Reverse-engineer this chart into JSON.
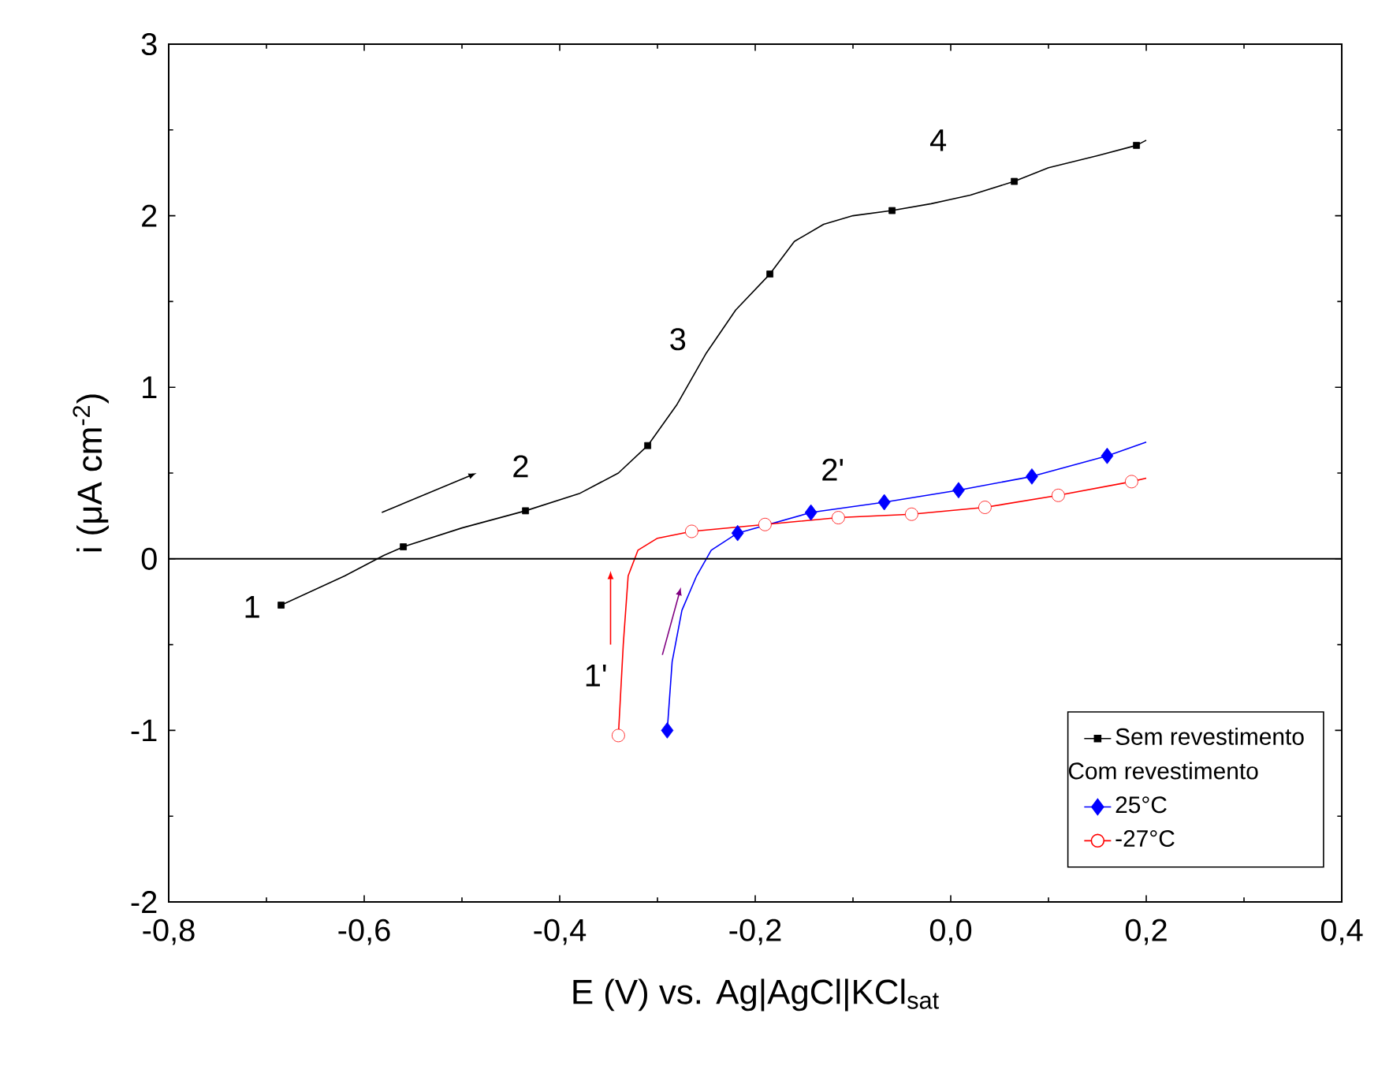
{
  "chart_data": {
    "type": "line",
    "xlabel": "E (V) vs. Ag|AgCl|KCl$_{sat}$",
    "ylabel": "i (μA cm$^{-2}$)",
    "legend_title": "Com revestimento",
    "xlim": [
      -0.8,
      0.4
    ],
    "ylim": [
      -2,
      3
    ],
    "xticks": [
      {
        "value": -0.8,
        "label": "-0,8"
      },
      {
        "value": -0.6,
        "label": "-0,6"
      },
      {
        "value": -0.4,
        "label": "-0,4"
      },
      {
        "value": -0.2,
        "label": "-0,2"
      },
      {
        "value": 0.0,
        "label": "0,0"
      },
      {
        "value": 0.2,
        "label": "0,2"
      },
      {
        "value": 0.4,
        "label": "0,4"
      }
    ],
    "yticks": [
      -2,
      -1,
      0,
      1,
      2,
      3
    ],
    "grid": false,
    "legend": "bottom right",
    "ref_lines": [
      {
        "axis": "y",
        "value": 0,
        "color": "#000000"
      }
    ],
    "annotations": [
      "1",
      "2",
      "3",
      "4",
      "1'",
      "2'"
    ],
    "series": [
      {
        "color": "#000000",
        "marker": "none",
        "x": [
          -0.685,
          -0.62,
          -0.58,
          -0.56,
          -0.5,
          -0.435,
          -0.38,
          -0.34,
          -0.31,
          -0.28,
          -0.25,
          -0.22,
          -0.185,
          -0.16,
          -0.13,
          -0.1,
          -0.06,
          -0.02,
          0.02,
          0.065,
          0.1,
          0.15,
          0.19,
          0.2
        ],
        "values": [
          -0.27,
          -0.1,
          0.02,
          0.07,
          0.18,
          0.28,
          0.38,
          0.5,
          0.66,
          0.9,
          1.2,
          1.45,
          1.66,
          1.85,
          1.95,
          2.0,
          2.03,
          2.07,
          2.12,
          2.2,
          2.28,
          2.35,
          2.41,
          2.44
        ]
      },
      {
        "type": "scatter",
        "name": "Sem revestimento",
        "color": "#000000",
        "marker": "square",
        "x": [
          -0.685,
          -0.56,
          -0.435,
          -0.31,
          -0.185,
          -0.06,
          0.065,
          0.19
        ],
        "values": [
          -0.27,
          0.07,
          0.28,
          0.66,
          1.66,
          2.03,
          2.2,
          2.41
        ]
      },
      {
        "color": "#0000ff",
        "marker": "none",
        "x": [
          -0.29,
          -0.285,
          -0.275,
          -0.26,
          -0.245,
          -0.218,
          -0.143,
          -0.068,
          0.008,
          0.083,
          0.16,
          0.2
        ],
        "values": [
          -1.0,
          -0.6,
          -0.3,
          -0.1,
          0.05,
          0.15,
          0.27,
          0.33,
          0.4,
          0.48,
          0.6,
          0.68
        ]
      },
      {
        "type": "scatter",
        "name": "25°C",
        "color": "#0000ff",
        "marker": "diamond",
        "x": [
          -0.29,
          -0.218,
          -0.143,
          -0.068,
          0.008,
          0.083,
          0.16
        ],
        "values": [
          -1.0,
          0.15,
          0.27,
          0.33,
          0.4,
          0.48,
          0.6
        ]
      },
      {
        "color": "#ff0000",
        "marker": "none",
        "x": [
          -0.34,
          -0.335,
          -0.33,
          -0.32,
          -0.3,
          -0.265,
          -0.19,
          -0.115,
          -0.04,
          0.035,
          0.11,
          0.185,
          0.2
        ],
        "values": [
          -1.03,
          -0.5,
          -0.1,
          0.05,
          0.12,
          0.16,
          0.2,
          0.24,
          0.26,
          0.3,
          0.37,
          0.45,
          0.47
        ]
      },
      {
        "type": "scatter",
        "name": "-27°C",
        "color": "#ff0000",
        "marker": "circle",
        "x": [
          -0.34,
          -0.265,
          -0.19,
          -0.115,
          -0.04,
          0.035,
          0.11,
          0.185
        ],
        "values": [
          -1.03,
          0.16,
          0.2,
          0.24,
          0.26,
          0.3,
          0.37,
          0.45
        ]
      }
    ]
  }
}
